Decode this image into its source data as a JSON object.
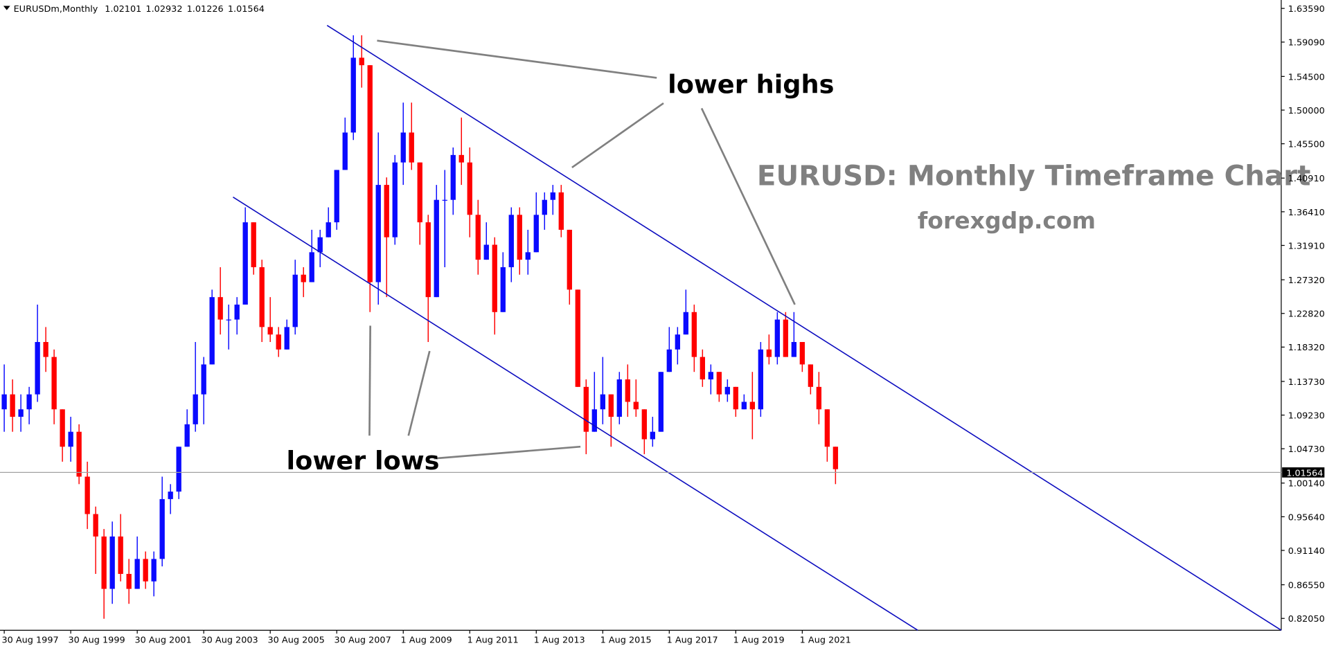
{
  "chart_data": {
    "type": "candlestick",
    "title": "EURUSDm,Monthly",
    "header_values": [
      1.02101,
      1.02932,
      1.01226,
      1.01564
    ],
    "annotation_highs": "lower highs",
    "annotation_lows": "lower lows",
    "headline": "EURUSD: Monthly Timeframe Chart",
    "source": "forexgdp.com",
    "current_price": 1.01564,
    "up_color": "#0a0aff",
    "down_color": "#ff0000",
    "categories": [
      "30 Aug 1997",
      null,
      null,
      null,
      null,
      null,
      null,
      null,
      "30 Aug 1999",
      null,
      null,
      null,
      null,
      null,
      null,
      null,
      "30 Aug 2001",
      null,
      null,
      null,
      null,
      null,
      null,
      null,
      "30 Aug 2003",
      null,
      null,
      null,
      null,
      null,
      null,
      null,
      "30 Aug 2005",
      null,
      null,
      null,
      null,
      null,
      null,
      null,
      "30 Aug 2007",
      null,
      null,
      null,
      null,
      null,
      null,
      null,
      "1 Aug 2009",
      null,
      null,
      null,
      null,
      null,
      null,
      null,
      "1 Aug 2011",
      null,
      null,
      null,
      null,
      null,
      null,
      null,
      "1 Aug 2013",
      null,
      null,
      null,
      null,
      null,
      null,
      null,
      "1 Aug 2015",
      null,
      null,
      null,
      null,
      null,
      null,
      null,
      "1 Aug 2017",
      null,
      null,
      null,
      null,
      null,
      null,
      null,
      "1 Aug 2019",
      null,
      null,
      null,
      null,
      null,
      null,
      null,
      "1 Aug 2021",
      null,
      null,
      null,
      null
    ],
    "open": [
      1.1,
      1.12,
      1.09,
      1.1,
      1.12,
      1.19,
      1.17,
      1.1,
      1.05,
      1.07,
      1.01,
      0.96,
      0.93,
      0.86,
      0.93,
      0.88,
      0.86,
      0.9,
      0.87,
      0.9,
      0.98,
      0.99,
      1.05,
      1.08,
      1.12,
      1.16,
      1.25,
      1.22,
      1.22,
      1.24,
      1.35,
      1.29,
      1.21,
      1.2,
      1.18,
      1.21,
      1.28,
      1.27,
      1.31,
      1.33,
      1.35,
      1.42,
      1.47,
      1.57,
      1.56,
      1.27,
      1.4,
      1.33,
      1.43,
      1.47,
      1.43,
      1.35,
      1.25,
      1.38,
      1.38,
      1.44,
      1.43,
      1.36,
      1.3,
      1.32,
      1.23,
      1.29,
      1.36,
      1.3,
      1.31,
      1.36,
      1.38,
      1.39,
      1.34,
      1.26,
      1.13,
      1.07,
      1.1,
      1.12,
      1.09,
      1.14,
      1.11,
      1.1,
      1.06,
      1.07,
      1.15,
      1.18,
      1.2,
      1.23,
      1.17,
      1.14,
      1.15,
      1.12,
      1.13,
      1.1,
      1.11,
      1.1,
      1.18,
      1.17,
      1.22,
      1.17,
      1.19,
      1.16,
      1.13,
      1.1,
      1.05
    ],
    "high": [
      1.16,
      1.14,
      1.12,
      1.13,
      1.24,
      1.21,
      1.18,
      1.1,
      1.09,
      1.08,
      1.03,
      0.97,
      0.94,
      0.95,
      0.96,
      0.9,
      0.93,
      0.91,
      0.91,
      1.01,
      1.0,
      1.05,
      1.1,
      1.19,
      1.17,
      1.26,
      1.29,
      1.24,
      1.25,
      1.37,
      1.35,
      1.3,
      1.25,
      1.21,
      1.22,
      1.3,
      1.29,
      1.34,
      1.34,
      1.37,
      1.42,
      1.49,
      1.6,
      1.6,
      1.56,
      1.47,
      1.41,
      1.44,
      1.51,
      1.51,
      1.43,
      1.36,
      1.4,
      1.42,
      1.45,
      1.49,
      1.45,
      1.38,
      1.35,
      1.33,
      1.31,
      1.37,
      1.37,
      1.34,
      1.39,
      1.39,
      1.4,
      1.4,
      1.34,
      1.26,
      1.14,
      1.15,
      1.17,
      1.12,
      1.15,
      1.16,
      1.14,
      1.1,
      1.09,
      1.15,
      1.21,
      1.21,
      1.26,
      1.24,
      1.18,
      1.16,
      1.15,
      1.14,
      1.13,
      1.12,
      1.15,
      1.19,
      1.2,
      1.23,
      1.23,
      1.23,
      1.19,
      1.16,
      1.15,
      1.1,
      1.05
    ],
    "low": [
      1.07,
      1.07,
      1.07,
      1.08,
      1.11,
      1.15,
      1.08,
      1.03,
      1.03,
      1.0,
      0.94,
      0.88,
      0.82,
      0.84,
      0.87,
      0.84,
      0.86,
      0.86,
      0.85,
      0.89,
      0.96,
      0.98,
      1.05,
      1.07,
      1.08,
      1.16,
      1.2,
      1.18,
      1.2,
      1.24,
      1.28,
      1.19,
      1.19,
      1.17,
      1.18,
      1.2,
      1.25,
      1.27,
      1.29,
      1.33,
      1.34,
      1.42,
      1.46,
      1.53,
      1.23,
      1.24,
      1.25,
      1.32,
      1.4,
      1.42,
      1.32,
      1.19,
      1.25,
      1.29,
      1.36,
      1.4,
      1.33,
      1.28,
      1.3,
      1.2,
      1.23,
      1.27,
      1.28,
      1.28,
      1.31,
      1.34,
      1.36,
      1.33,
      1.24,
      1.13,
      1.04,
      1.07,
      1.08,
      1.05,
      1.08,
      1.09,
      1.09,
      1.04,
      1.05,
      1.07,
      1.15,
      1.16,
      1.2,
      1.15,
      1.13,
      1.12,
      1.11,
      1.11,
      1.09,
      1.1,
      1.06,
      1.09,
      1.16,
      1.16,
      1.17,
      1.17,
      1.15,
      1.12,
      1.08,
      1.03,
      1.0
    ],
    "close": [
      1.12,
      1.09,
      1.1,
      1.12,
      1.19,
      1.17,
      1.1,
      1.05,
      1.07,
      1.01,
      0.96,
      0.93,
      0.86,
      0.93,
      0.88,
      0.86,
      0.9,
      0.87,
      0.9,
      0.98,
      0.99,
      1.05,
      1.08,
      1.12,
      1.16,
      1.25,
      1.22,
      1.22,
      1.24,
      1.35,
      1.29,
      1.21,
      1.2,
      1.18,
      1.21,
      1.28,
      1.27,
      1.31,
      1.33,
      1.35,
      1.42,
      1.47,
      1.57,
      1.56,
      1.27,
      1.4,
      1.33,
      1.43,
      1.47,
      1.43,
      1.35,
      1.25,
      1.38,
      1.38,
      1.44,
      1.43,
      1.36,
      1.3,
      1.32,
      1.23,
      1.29,
      1.36,
      1.3,
      1.31,
      1.36,
      1.38,
      1.39,
      1.34,
      1.26,
      1.13,
      1.07,
      1.1,
      1.12,
      1.09,
      1.14,
      1.11,
      1.1,
      1.06,
      1.07,
      1.15,
      1.18,
      1.2,
      1.23,
      1.17,
      1.14,
      1.15,
      1.12,
      1.13,
      1.1,
      1.11,
      1.1,
      1.18,
      1.17,
      1.22,
      1.17,
      1.19,
      1.16,
      1.13,
      1.1,
      1.05,
      1.02
    ],
    "ylim": [
      0.8047,
      1.6449
    ],
    "yticks": [
      {
        "value": 1.6359,
        "label": "1.63590"
      },
      {
        "value": 1.5909,
        "label": "1.59090"
      },
      {
        "value": 1.545,
        "label": "1.54500"
      },
      {
        "value": 1.5,
        "label": "1.50000"
      },
      {
        "value": 1.455,
        "label": "1.45500"
      },
      {
        "value": 1.4091,
        "label": "1.40910"
      },
      {
        "value": 1.3641,
        "label": "1.36410"
      },
      {
        "value": 1.3191,
        "label": "1.31910"
      },
      {
        "value": 1.2732,
        "label": "1.27320"
      },
      {
        "value": 1.2282,
        "label": "1.22820"
      },
      {
        "value": 1.1832,
        "label": "1.18320"
      },
      {
        "value": 1.1373,
        "label": "1.13730"
      },
      {
        "value": 1.0923,
        "label": "1.09230"
      },
      {
        "value": 1.0473,
        "label": "1.04730"
      },
      {
        "value": 1.0014,
        "label": "1.00140"
      },
      {
        "value": 0.9564,
        "label": "0.95640"
      },
      {
        "value": 0.9114,
        "label": "0.91140"
      },
      {
        "value": 0.8655,
        "label": "0.86550"
      },
      {
        "value": 0.8205,
        "label": "0.82050"
      }
    ]
  }
}
